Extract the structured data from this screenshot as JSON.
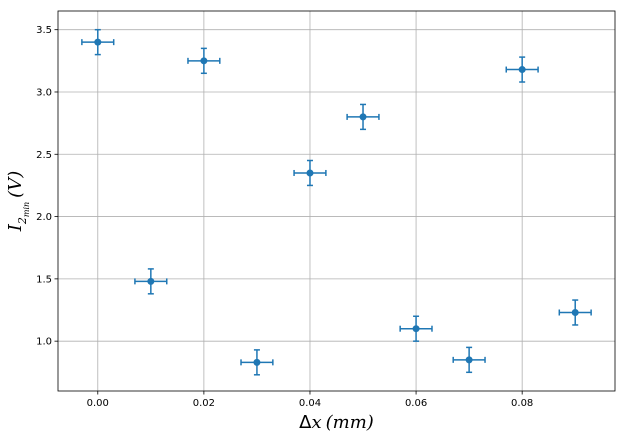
{
  "chart_data": {
    "type": "scatter",
    "title": "",
    "xlabel": {
      "prefix": "Δ",
      "variable": "x",
      "unit": "(mm)"
    },
    "ylabel": {
      "variable": "I",
      "subscript": "2",
      "subsubscript": "min",
      "unit": "(V)"
    },
    "xlim": [
      -0.0075,
      0.0975
    ],
    "ylim": [
      0.6,
      3.65
    ],
    "xticks": [
      0.0,
      0.02,
      0.04,
      0.06,
      0.08
    ],
    "xtick_labels": [
      "0.00",
      "0.02",
      "0.04",
      "0.06",
      "0.08"
    ],
    "yticks": [
      1.0,
      1.5,
      2.0,
      2.5,
      3.0,
      3.5
    ],
    "ytick_labels": [
      "1.0",
      "1.5",
      "2.0",
      "2.5",
      "3.0",
      "3.5"
    ],
    "grid": true,
    "marker_color": "#1f77b4",
    "series": [
      {
        "x": [
          0.0,
          0.01,
          0.02,
          0.03,
          0.04,
          0.05,
          0.06,
          0.07,
          0.08,
          0.09
        ],
        "y": [
          3.4,
          1.48,
          3.25,
          0.83,
          2.35,
          2.8,
          1.1,
          0.85,
          3.18,
          1.23
        ],
        "xerr": [
          0.003,
          0.003,
          0.003,
          0.003,
          0.003,
          0.003,
          0.003,
          0.003,
          0.003,
          0.003
        ],
        "yerr": [
          0.1,
          0.1,
          0.1,
          0.1,
          0.1,
          0.1,
          0.1,
          0.1,
          0.1,
          0.1
        ]
      }
    ]
  }
}
